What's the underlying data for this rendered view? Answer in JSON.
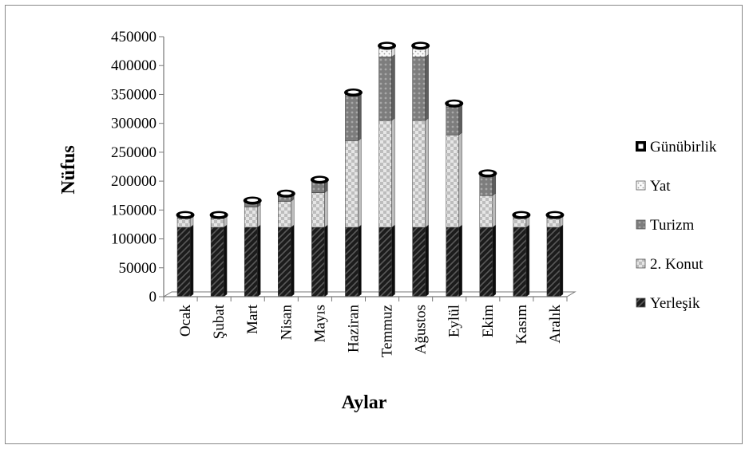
{
  "chart_data": {
    "type": "bar",
    "stacked": true,
    "three_d": true,
    "xlabel": "Aylar",
    "ylabel": "Nüfus",
    "ylim": [
      0,
      450000
    ],
    "yticks": [
      0,
      50000,
      100000,
      150000,
      200000,
      250000,
      300000,
      350000,
      400000,
      450000
    ],
    "ytick_labels": [
      "0",
      "50000",
      "100000",
      "150000",
      "200000",
      "250000",
      "300000",
      "350000",
      "400000",
      "450000"
    ],
    "categories": [
      "Ocak",
      "Şubat",
      "Mart",
      "Nisan",
      "Mayıs",
      "Haziran",
      "Temmuz",
      "Ağustos",
      "Eylül",
      "Ekim",
      "Kasım",
      "Aralık"
    ],
    "legend_position": "right",
    "series": [
      {
        "name": "Yerleşik",
        "color": "#1a1a1a",
        "values": [
          120000,
          120000,
          120000,
          120000,
          120000,
          120000,
          120000,
          120000,
          120000,
          120000,
          120000,
          120000
        ]
      },
      {
        "name": "2. Konut",
        "color": "#d9d9d9",
        "values": [
          15000,
          15000,
          35000,
          45000,
          60000,
          150000,
          185000,
          185000,
          160000,
          55000,
          15000,
          15000
        ]
      },
      {
        "name": "Turizm",
        "color": "#8c8c8c",
        "values": [
          3000,
          3000,
          8000,
          10000,
          19000,
          77000,
          110000,
          110000,
          48000,
          35000,
          3000,
          3000
        ]
      },
      {
        "name": "Yat",
        "color": "#f2f2f2",
        "values": [
          0,
          0,
          0,
          0,
          0,
          2000,
          15000,
          15000,
          2000,
          0,
          0,
          0
        ]
      },
      {
        "name": "Günübirlik",
        "color": "#000000",
        "values": [
          2000,
          2000,
          2000,
          2000,
          2000,
          3000,
          3000,
          3000,
          3000,
          2000,
          2000,
          2000
        ]
      }
    ]
  }
}
